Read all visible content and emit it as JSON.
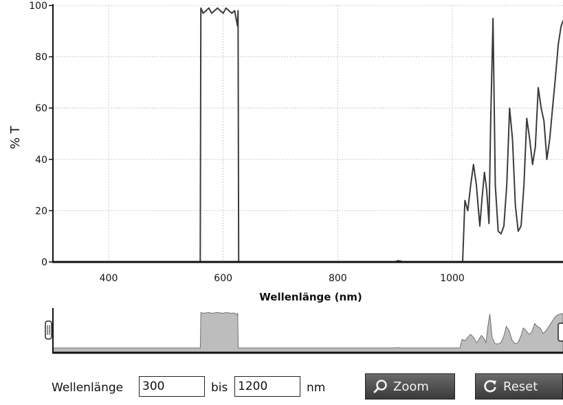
{
  "chart_data": {
    "type": "line",
    "title": "",
    "xlabel": "Wellenlänge (nm)",
    "ylabel": "% T",
    "xlim": [
      300,
      1200
    ],
    "ylim": [
      0,
      100
    ],
    "xticks": [
      400,
      600,
      800,
      1000
    ],
    "yticks": [
      0,
      20,
      40,
      60,
      80,
      100
    ],
    "grid": true,
    "series": [
      {
        "name": "",
        "x": [
          300,
          560,
          561,
          565,
          570,
          575,
          580,
          585,
          590,
          595,
          600,
          605,
          610,
          615,
          620,
          625,
          626,
          627,
          900,
          905,
          910,
          915,
          1000,
          1018,
          1022,
          1027,
          1032,
          1037,
          1042,
          1048,
          1052,
          1056,
          1060,
          1064,
          1067,
          1071,
          1075,
          1080,
          1085,
          1090,
          1095,
          1100,
          1105,
          1110,
          1115,
          1120,
          1125,
          1130,
          1135,
          1140,
          1145,
          1150,
          1155,
          1160,
          1165,
          1170,
          1175,
          1180,
          1185,
          1190,
          1195,
          1200
        ],
        "y": [
          0,
          0,
          99,
          97,
          98,
          99,
          97,
          98,
          99,
          98,
          97,
          99,
          98,
          97,
          98,
          92,
          98,
          0,
          0,
          0.5,
          0.3,
          0,
          0,
          0,
          24,
          20,
          30,
          38,
          30,
          14,
          25,
          35,
          28,
          15,
          55,
          95,
          30,
          12,
          11,
          14,
          30,
          60,
          48,
          22,
          12,
          14,
          30,
          56,
          48,
          38,
          45,
          68,
          60,
          55,
          40,
          48,
          60,
          72,
          85,
          92,
          95,
          96
        ]
      }
    ]
  },
  "controls": {
    "wavelength_label": "Wellenlänge",
    "from_value": "300",
    "bis_label": "bis",
    "to_value": "1200",
    "unit_label": "nm",
    "zoom_label": "Zoom",
    "reset_label": "Reset"
  },
  "colors": {
    "line": "#3a3a3a",
    "grid": "#c8c8c8",
    "overview_fill": "#bdbdbd",
    "button": "#4a4a4a"
  },
  "icons": {
    "zoom": "magnifier-icon",
    "reset": "refresh-icon"
  }
}
